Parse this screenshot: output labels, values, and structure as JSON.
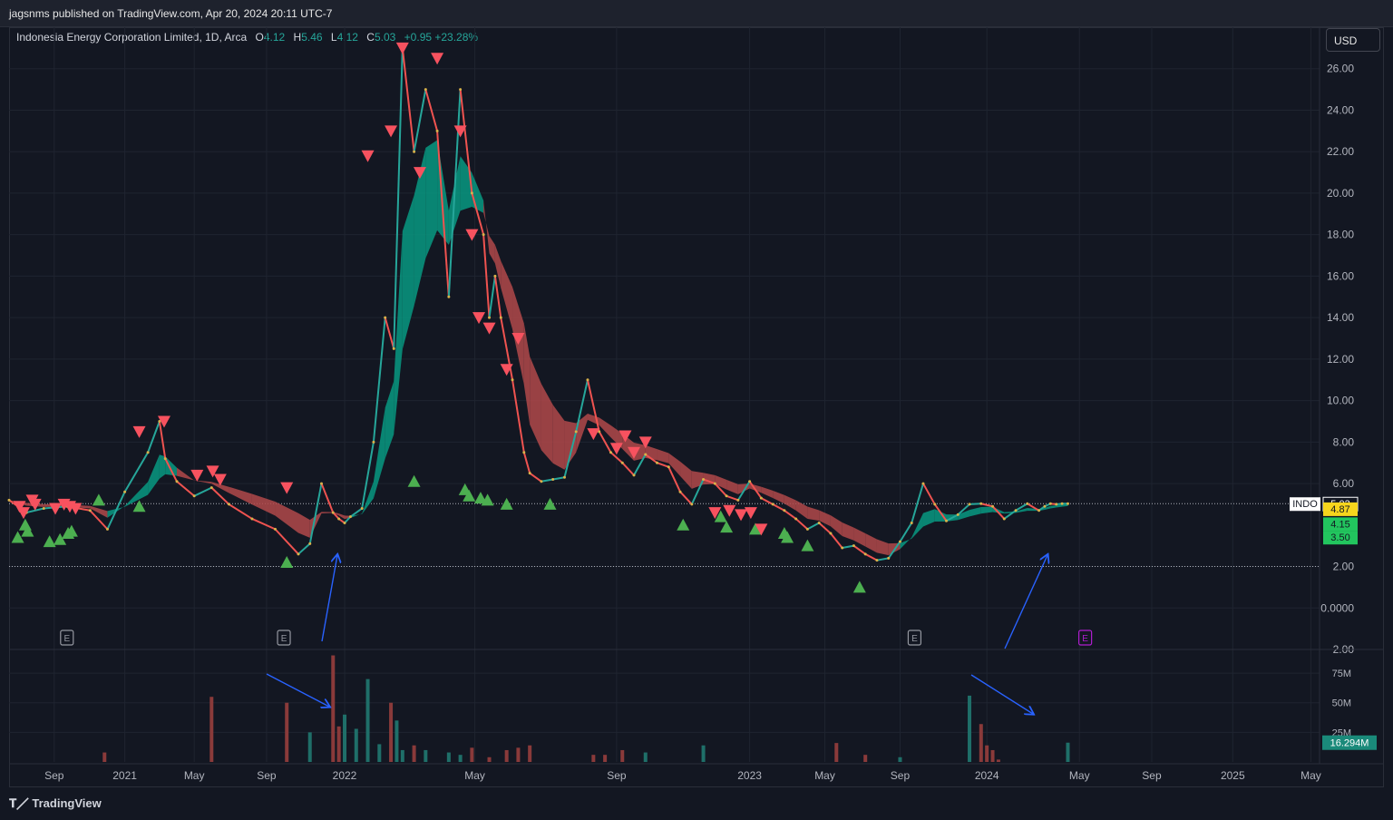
{
  "header": {
    "published": "jagsnms published on TradingView.com, Apr 20, 2024 20:11 UTC-7"
  },
  "legend": {
    "symbol": "Indonesia Energy Corporation Limited, 1D, Arca",
    "o_label": "O",
    "o_value": "4.12",
    "h_label": "H",
    "h_value": "5.46",
    "l_label": "L",
    "l_value": "4.12",
    "c_label": "C",
    "c_value": "5.03",
    "change": "+0.95 +23.28%"
  },
  "currency_button": "USD",
  "footer": {
    "brand": "TradingView"
  },
  "colors": {
    "background": "#131722",
    "up": "#26a69a",
    "down": "#ef5350",
    "ribbon_up": "#089981",
    "ribbon_down": "#b2494a",
    "buy_marker": "#4caf50",
    "sell_marker": "#f7525f",
    "arrow": "#2962ff"
  },
  "chart_data": {
    "type": "line",
    "symbol": "INDO",
    "last_price": 5.03,
    "price_axis": {
      "range": [
        -2.0,
        28.0
      ],
      "ticks": [
        "26.00",
        "24.00",
        "22.00",
        "20.00",
        "18.00",
        "16.00",
        "14.00",
        "12.00",
        "10.00",
        "8.00",
        "6.00",
        "2.00",
        "0.0000",
        "−2.00"
      ],
      "tick_values": [
        26,
        24,
        22,
        20,
        18,
        16,
        14,
        12,
        10,
        8,
        6,
        2,
        0,
        -2
      ]
    },
    "price_labels": [
      {
        "text": "INDO",
        "kind": "symbol"
      },
      {
        "text": "5.03",
        "value": 5.03,
        "kind": "last"
      },
      {
        "text": "4.87",
        "value": 4.87,
        "kind": "yellow"
      },
      {
        "text": "4.15",
        "value": 4.15,
        "kind": "green"
      },
      {
        "text": "3.50",
        "value": 3.5,
        "kind": "green"
      }
    ],
    "reference_lines": [
      5.03,
      2.0
    ],
    "time_axis": {
      "labels": [
        "Sep",
        "2021",
        "May",
        "Sep",
        "2022",
        "May",
        "Sep",
        "2023",
        "May",
        "Sep",
        "2024",
        "May",
        "Sep",
        "2025",
        "May"
      ],
      "label_days": [
        78,
        200,
        320,
        445,
        580,
        805,
        1050,
        1280,
        1410,
        1540,
        1690,
        1850,
        1975,
        2115,
        2250
      ]
    },
    "earnings_markers": [
      {
        "text": "E",
        "day": 100,
        "future": false
      },
      {
        "text": "E",
        "day": 475,
        "future": false
      },
      {
        "text": "E",
        "day": 1565,
        "future": false
      },
      {
        "text": "E",
        "day": 1860,
        "future": true
      }
    ],
    "price_series": {
      "name": "INDO",
      "days": [
        0,
        30,
        60,
        100,
        140,
        170,
        200,
        240,
        260,
        270,
        290,
        320,
        350,
        380,
        420,
        460,
        500,
        520,
        540,
        560,
        570,
        580,
        590,
        610,
        630,
        650,
        665,
        680,
        700,
        720,
        740,
        760,
        780,
        800,
        820,
        830,
        840,
        850,
        870,
        890,
        900,
        920,
        940,
        960,
        980,
        1000,
        1020,
        1040,
        1060,
        1080,
        1100,
        1120,
        1140,
        1160,
        1180,
        1200,
        1220,
        1240,
        1260,
        1280,
        1300,
        1320,
        1340,
        1360,
        1380,
        1400,
        1420,
        1440,
        1460,
        1480,
        1500,
        1520,
        1540,
        1560,
        1580,
        1600,
        1620,
        1640,
        1660,
        1680,
        1700,
        1720,
        1740,
        1760,
        1780,
        1790,
        1800,
        1810,
        1820,
        1830
      ],
      "close": [
        5.2,
        4.6,
        4.8,
        4.9,
        4.7,
        3.8,
        5.6,
        7.5,
        9.0,
        7.2,
        6.1,
        5.4,
        5.8,
        5.0,
        4.3,
        3.8,
        2.6,
        3.1,
        6.0,
        4.6,
        4.3,
        4.1,
        4.4,
        4.8,
        8.0,
        14.0,
        12.5,
        27.0,
        22.0,
        25.0,
        23.0,
        15.0,
        25.0,
        20.0,
        18.0,
        14.0,
        16.0,
        14.0,
        11.0,
        7.5,
        6.5,
        6.1,
        6.2,
        6.3,
        8.5,
        11.0,
        8.5,
        7.5,
        7.0,
        6.4,
        7.4,
        7.0,
        6.8,
        5.6,
        5.0,
        6.2,
        6.0,
        5.4,
        5.2,
        6.1,
        5.3,
        5.0,
        4.7,
        4.3,
        3.8,
        4.1,
        3.6,
        2.9,
        3.0,
        2.6,
        2.3,
        2.4,
        3.2,
        4.1,
        6.0,
        5.0,
        4.2,
        4.5,
        5.0,
        5.03,
        4.9,
        4.3,
        4.7,
        5.03,
        4.7,
        4.9,
        5.03,
        5.0,
        5.03,
        5.03
      ]
    },
    "signals": {
      "buy_days": [
        15,
        28,
        32,
        70,
        88,
        102,
        108,
        155,
        225,
        480,
        700,
        788,
        795,
        815,
        827,
        860,
        935,
        1165,
        1230,
        1240,
        1290,
        1340,
        1345,
        1380,
        1470
      ],
      "buy_prices": [
        3.4,
        4.0,
        3.7,
        3.2,
        3.3,
        3.6,
        3.7,
        5.2,
        4.9,
        2.2,
        6.1,
        5.7,
        5.4,
        5.3,
        5.2,
        5.0,
        5.0,
        4.0,
        4.4,
        3.9,
        3.8,
        3.6,
        3.4,
        3.0,
        1.0
      ],
      "sell_days": [
        18,
        25,
        40,
        45,
        80,
        95,
        105,
        115,
        225,
        268,
        325,
        352,
        365,
        480,
        620,
        660,
        680,
        710,
        740,
        780,
        800,
        812,
        830,
        860,
        880,
        1010,
        1050,
        1065,
        1080,
        1100,
        1220,
        1245,
        1265,
        1282,
        1300
      ],
      "sell_prices": [
        4.9,
        4.6,
        5.2,
        5.0,
        4.8,
        5.0,
        4.9,
        4.8,
        8.5,
        9.0,
        6.4,
        6.6,
        6.2,
        5.8,
        21.8,
        23.0,
        27.0,
        21.0,
        26.5,
        23.0,
        18.0,
        14.0,
        13.5,
        11.5,
        13.0,
        8.4,
        7.7,
        8.3,
        7.5,
        8.0,
        4.6,
        4.7,
        4.5,
        4.6,
        3.8
      ]
    },
    "volume": {
      "axis_ticks": [
        "75M",
        "50M",
        "25M"
      ],
      "tick_values": [
        75,
        50,
        25
      ],
      "last_label": "16.294M",
      "last_value": 16.294,
      "units": "M",
      "days": [
        165,
        350,
        480,
        520,
        560,
        570,
        580,
        600,
        620,
        640,
        660,
        670,
        680,
        700,
        720,
        760,
        780,
        800,
        830,
        860,
        880,
        900,
        1010,
        1030,
        1060,
        1100,
        1200,
        1430,
        1480,
        1540,
        1660,
        1680,
        1690,
        1700,
        1710,
        1830
      ],
      "values": [
        8,
        55,
        50,
        25,
        90,
        30,
        40,
        28,
        70,
        15,
        50,
        35,
        10,
        14,
        10,
        8,
        6,
        12,
        4,
        10,
        12,
        14,
        6,
        6,
        10,
        8,
        14,
        16,
        6,
        4,
        56,
        32,
        14,
        10,
        2,
        16.294
      ]
    }
  }
}
